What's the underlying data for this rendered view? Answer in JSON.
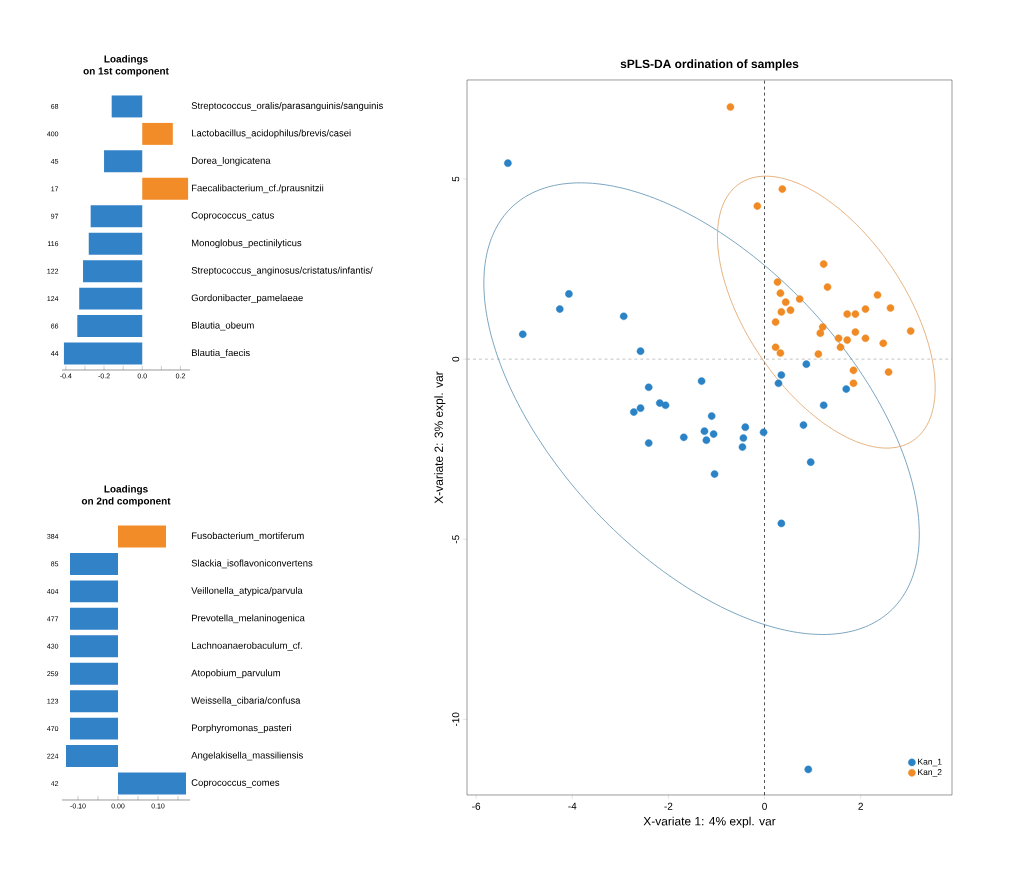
{
  "chart_data": [
    {
      "type": "bar",
      "orientation": "horizontal",
      "title": "Loadings",
      "subtitle": "on 1st component",
      "categories": [
        "68",
        "400",
        "45",
        "17",
        "97",
        "116",
        "122",
        "124",
        "66",
        "44"
      ],
      "values": [
        -0.16,
        0.16,
        -0.2,
        0.24,
        -0.27,
        -0.28,
        -0.31,
        -0.33,
        -0.34,
        -0.41
      ],
      "colors": [
        "#3282c8",
        "#f28c28",
        "#3282c8",
        "#f28c28",
        "#3282c8",
        "#3282c8",
        "#3282c8",
        "#3282c8",
        "#3282c8",
        "#3282c8"
      ],
      "annotations": [
        "Streptococcus_oralis/parasanguinis/sanguinis",
        "Lactobacillus_acidophilus/brevis/casei",
        "Dorea_longicatena",
        "Faecalibacterium_cf./prausnitzii",
        "Coprococcus_catus",
        "Monoglobus_pectinilyticus",
        "Streptococcus_anginosus/cristatus/infantis/",
        "Gordonibacter_pamelaeae",
        "Blautia_obeum",
        "Blautia_faecis"
      ],
      "xlim": [
        -0.42,
        0.25
      ],
      "xticks": [
        -0.4,
        {
          "value": -0.3,
          "label": null
        },
        -0.2,
        {
          "value": -0.1,
          "label": null
        },
        {
          "value": 0,
          "label": "0.0"
        },
        {
          "value": 0.1,
          "label": null
        },
        0.2
      ]
    },
    {
      "type": "bar",
      "orientation": "horizontal",
      "title": "Loadings",
      "subtitle": "on 2nd component",
      "categories": [
        "384",
        "85",
        "404",
        "477",
        "430",
        "259",
        "123",
        "470",
        "224",
        "42"
      ],
      "values": [
        0.12,
        -0.12,
        -0.12,
        -0.12,
        -0.12,
        -0.12,
        -0.12,
        -0.12,
        -0.13,
        0.17
      ],
      "colors": [
        "#f28c28",
        "#3282c8",
        "#3282c8",
        "#3282c8",
        "#3282c8",
        "#3282c8",
        "#3282c8",
        "#3282c8",
        "#3282c8",
        "#3282c8"
      ],
      "annotations": [
        "Fusobacterium_mortiferum",
        "Slackia_isoflavoniconvertens",
        "Veillonella_atypica/parvula",
        "Prevotella_melaninogenica",
        "Lachnoanaerobaculum_cf.",
        "Atopobium_parvulum",
        "Weissella_cibaria/confusa",
        "Porphyromonas_pasteri",
        "Angelakisella_massiliensis",
        "Coprococcus_comes"
      ],
      "xlim": [
        -0.14,
        0.18
      ],
      "xticks": [
        {
          "value": -0.1,
          "label": "-0.10"
        },
        {
          "value": -0.05,
          "label": null
        },
        {
          "value": 0,
          "label": "0.00"
        },
        {
          "value": 0.05,
          "label": null
        },
        {
          "value": 0.1,
          "label": "0.10"
        },
        {
          "value": 0.15,
          "label": null
        }
      ]
    },
    {
      "type": "scatter",
      "title": "sPLS-DA ordination of samples",
      "xlabel": "X-variate 1: 4% expl. var",
      "ylabel": "X-variate 2: 3% expl. var",
      "xlim": [
        -6.19,
        3.9
      ],
      "ylim": [
        -12.1,
        7.75
      ],
      "xticks": [
        -6,
        -4,
        -2,
        0,
        2
      ],
      "yticks": [
        -10,
        -5,
        0,
        5
      ],
      "legend": "bottom right",
      "marker": "circle",
      "ref_lines": [
        {
          "axis": "x",
          "value": 0,
          "color": "#000000",
          "line_style": "dashed"
        },
        {
          "axis": "y",
          "value": 0,
          "color": "#aaaaaa",
          "line_style": "dashed"
        }
      ],
      "series": [
        {
          "name": "Kan_1",
          "color": "#2b83c6",
          "x": [
            -5.34,
            -4.07,
            -4.26,
            -5.03,
            -2.93,
            -2.58,
            0.87,
            0.35,
            0.29,
            1.7,
            -1.31,
            -2.41,
            -2.72,
            -2.58,
            -2.18,
            -2.06,
            -1.1,
            1.23,
            0.81,
            -0.02,
            -0.4,
            -0.44,
            -0.46,
            -1.25,
            -1.06,
            -1.21,
            -1.68,
            -2.41,
            0.96,
            -1.04,
            0.35,
            0.91
          ],
          "values": [
            5.44,
            1.81,
            1.39,
            0.69,
            1.19,
            0.22,
            -0.14,
            -0.44,
            -0.67,
            -0.83,
            -0.61,
            -0.78,
            -1.47,
            -1.36,
            -1.22,
            -1.28,
            -1.58,
            -1.28,
            -1.83,
            -2.03,
            -1.89,
            -2.19,
            -2.44,
            -2.0,
            -2.08,
            -2.25,
            -2.17,
            -2.33,
            -2.86,
            -3.19,
            -4.56,
            -11.39
          ]
        },
        {
          "name": "Kan_2",
          "color": "#f08a24",
          "x": [
            -0.71,
            0.37,
            -0.15,
            1.23,
            1.31,
            0.27,
            0.33,
            0.73,
            0.44,
            0.54,
            0.35,
            0.23,
            2.35,
            2.62,
            2.1,
            1.72,
            1.89,
            1.21,
            1.16,
            1.89,
            1.54,
            1.72,
            2.1,
            2.47,
            3.04,
            1.58,
            0.23,
            0.33,
            1.12,
            1.85,
            2.58,
            1.85
          ],
          "values": [
            7.0,
            4.72,
            4.25,
            2.64,
            2.0,
            2.14,
            1.83,
            1.67,
            1.58,
            1.36,
            1.31,
            1.03,
            1.78,
            1.42,
            1.39,
            1.25,
            1.25,
            0.89,
            0.72,
            0.75,
            0.58,
            0.53,
            0.58,
            0.44,
            0.78,
            0.33,
            0.33,
            0.17,
            0.14,
            -0.31,
            -0.36,
            -0.67
          ]
        }
      ]
    }
  ]
}
